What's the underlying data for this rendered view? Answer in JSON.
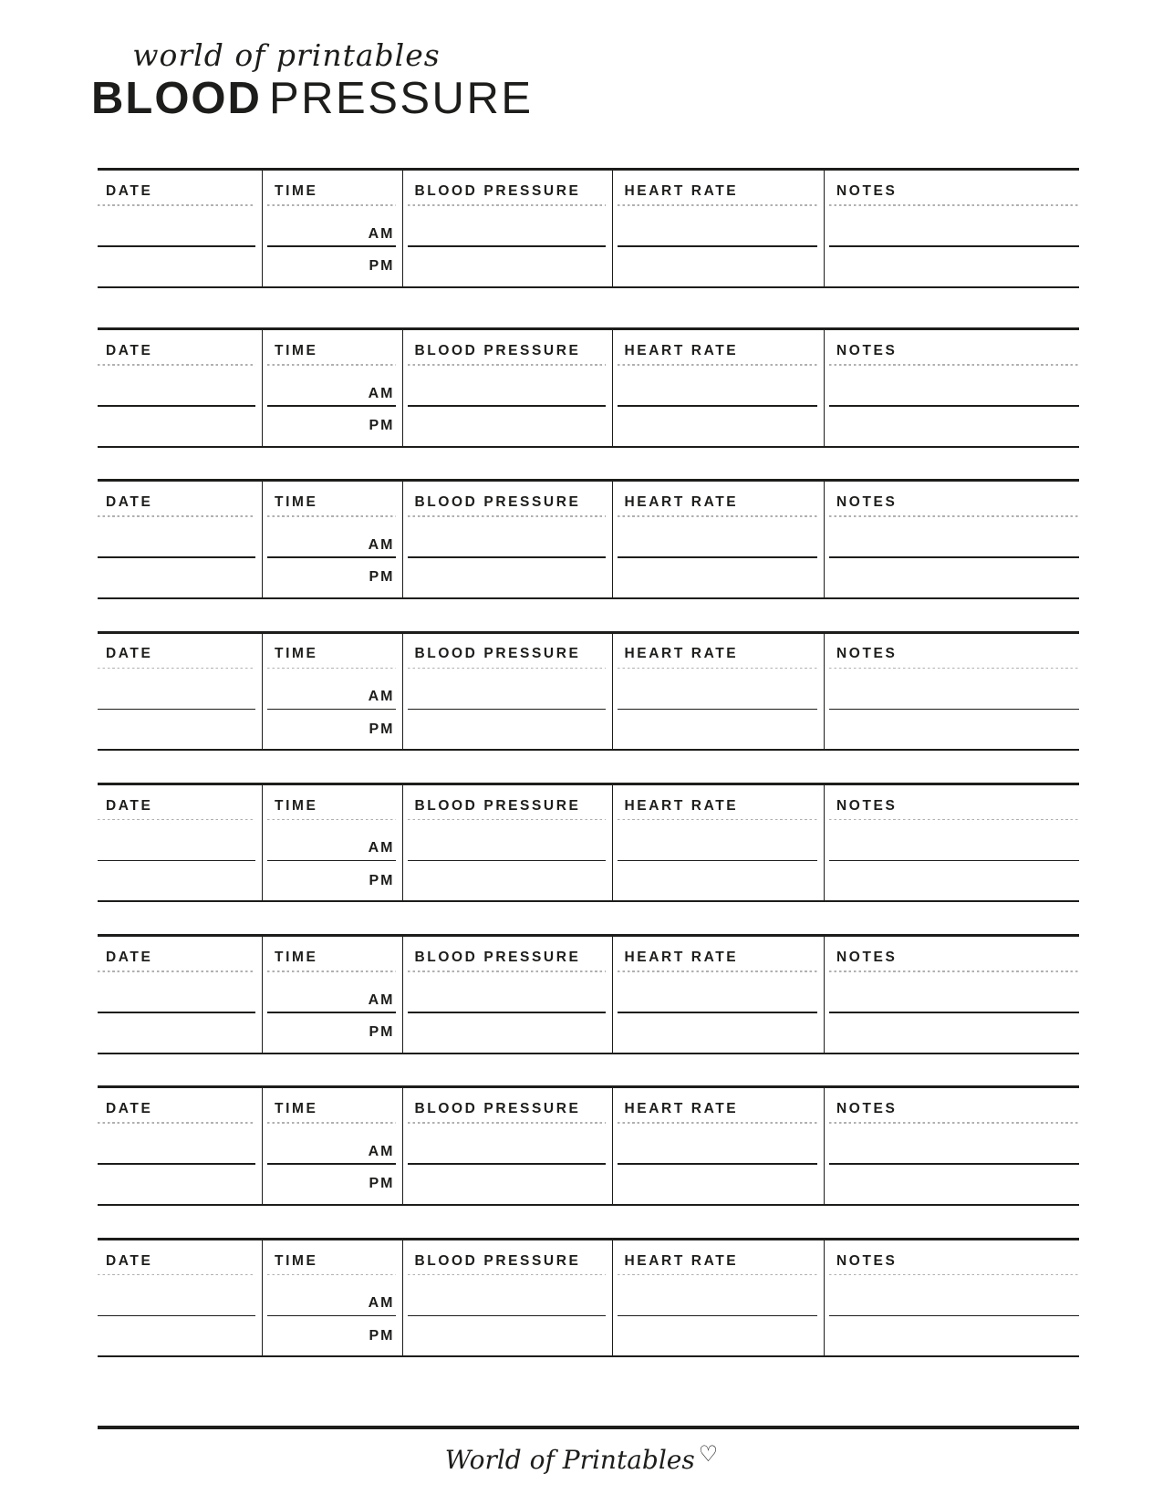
{
  "header": {
    "brand_script": "world of printables",
    "title_bold": "BLOOD",
    "title_light": "PRESSURE"
  },
  "log": {
    "section_count": 8,
    "columns": [
      "DATE",
      "TIME",
      "BLOOD PRESSURE",
      "HEART RATE",
      "NOTES"
    ],
    "time_labels": {
      "am": "AM",
      "pm": "PM"
    }
  },
  "footer": {
    "brand_script": "World of Printables",
    "heart": "♡"
  },
  "colors": {
    "ink": "#1d1d1b",
    "dotted_line": "#b0b0b0"
  }
}
